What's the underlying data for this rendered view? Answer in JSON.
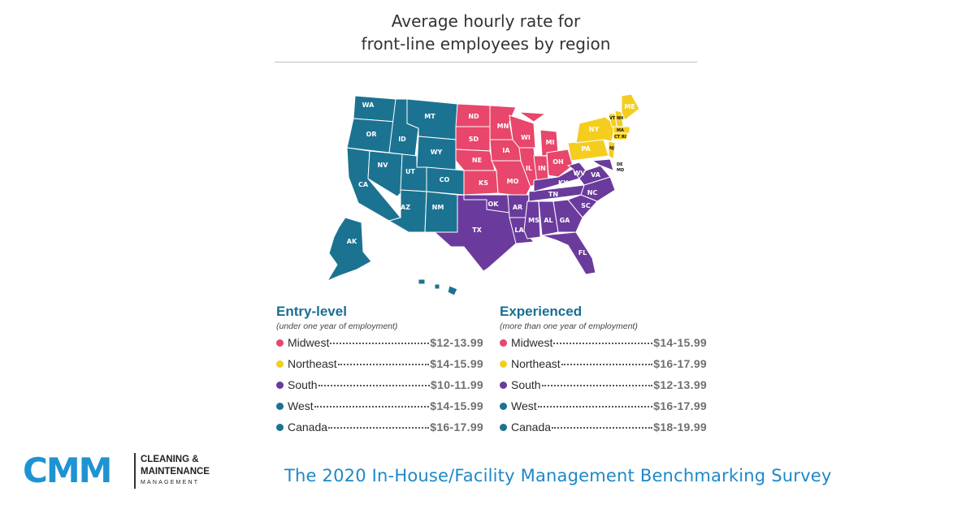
{
  "title_line1": "Average hourly rate for",
  "title_line2": "front-line employees by region",
  "colors": {
    "Midwest": "#e8466b",
    "Northeast": "#f5cd1f",
    "South": "#6a3b9c",
    "West": "#1b7391",
    "Canada": "#1b7391"
  },
  "states": {
    "WA": "WA",
    "OR": "OR",
    "CA": "CA",
    "ID": "ID",
    "NV": "NV",
    "MT": "MT",
    "WY": "WY",
    "UT": "UT",
    "AZ": "AZ",
    "CO": "CO",
    "NM": "NM",
    "AK": "AK",
    "ND": "ND",
    "SD": "SD",
    "NE": "NE",
    "KS": "KS",
    "MN": "MN",
    "IA": "IA",
    "MO": "MO",
    "WI": "WI",
    "IL": "IL",
    "MI": "MI",
    "IN": "IN",
    "OH": "OH",
    "TX": "TX",
    "OK": "OK",
    "AR": "AR",
    "LA": "LA",
    "MS": "MS",
    "AL": "AL",
    "GA": "GA",
    "FL": "FL",
    "TN": "TN",
    "KY": "KY",
    "WV": "WV",
    "VA": "VA",
    "NC": "NC",
    "SC": "SC",
    "DE": "DE",
    "MD": "MD",
    "ME": "ME",
    "NY": "NY",
    "PA": "PA",
    "VT": "VT",
    "NH": "NH",
    "MA": "MA",
    "CT": "CT",
    "RI": "RI",
    "NJ": "NJ"
  },
  "entry": {
    "heading": "Entry-level",
    "subheading": "(under one year of employment)",
    "rows": [
      {
        "region": "Midwest",
        "value": "$12-13.99"
      },
      {
        "region": "Northeast",
        "value": "$14-15.99"
      },
      {
        "region": "South",
        "value": "$10-11.99"
      },
      {
        "region": "West",
        "value": "$14-15.99"
      },
      {
        "region": "Canada",
        "value": "$16-17.99"
      }
    ]
  },
  "experienced": {
    "heading": "Experienced",
    "subheading": "(more than one year of employment)",
    "rows": [
      {
        "region": "Midwest",
        "value": "$14-15.99"
      },
      {
        "region": "Northeast",
        "value": "$16-17.99"
      },
      {
        "region": "South",
        "value": "$12-13.99"
      },
      {
        "region": "West",
        "value": "$16-17.99"
      },
      {
        "region": "Canada",
        "value": "$18-19.99"
      }
    ]
  },
  "logo": {
    "mark": "CMM",
    "line1": "CLEANING &",
    "line2": "MAINTENANCE",
    "line3": "MANAGEMENT"
  },
  "survey_title": "The 2020 In-House/Facility Management Benchmarking Survey"
}
